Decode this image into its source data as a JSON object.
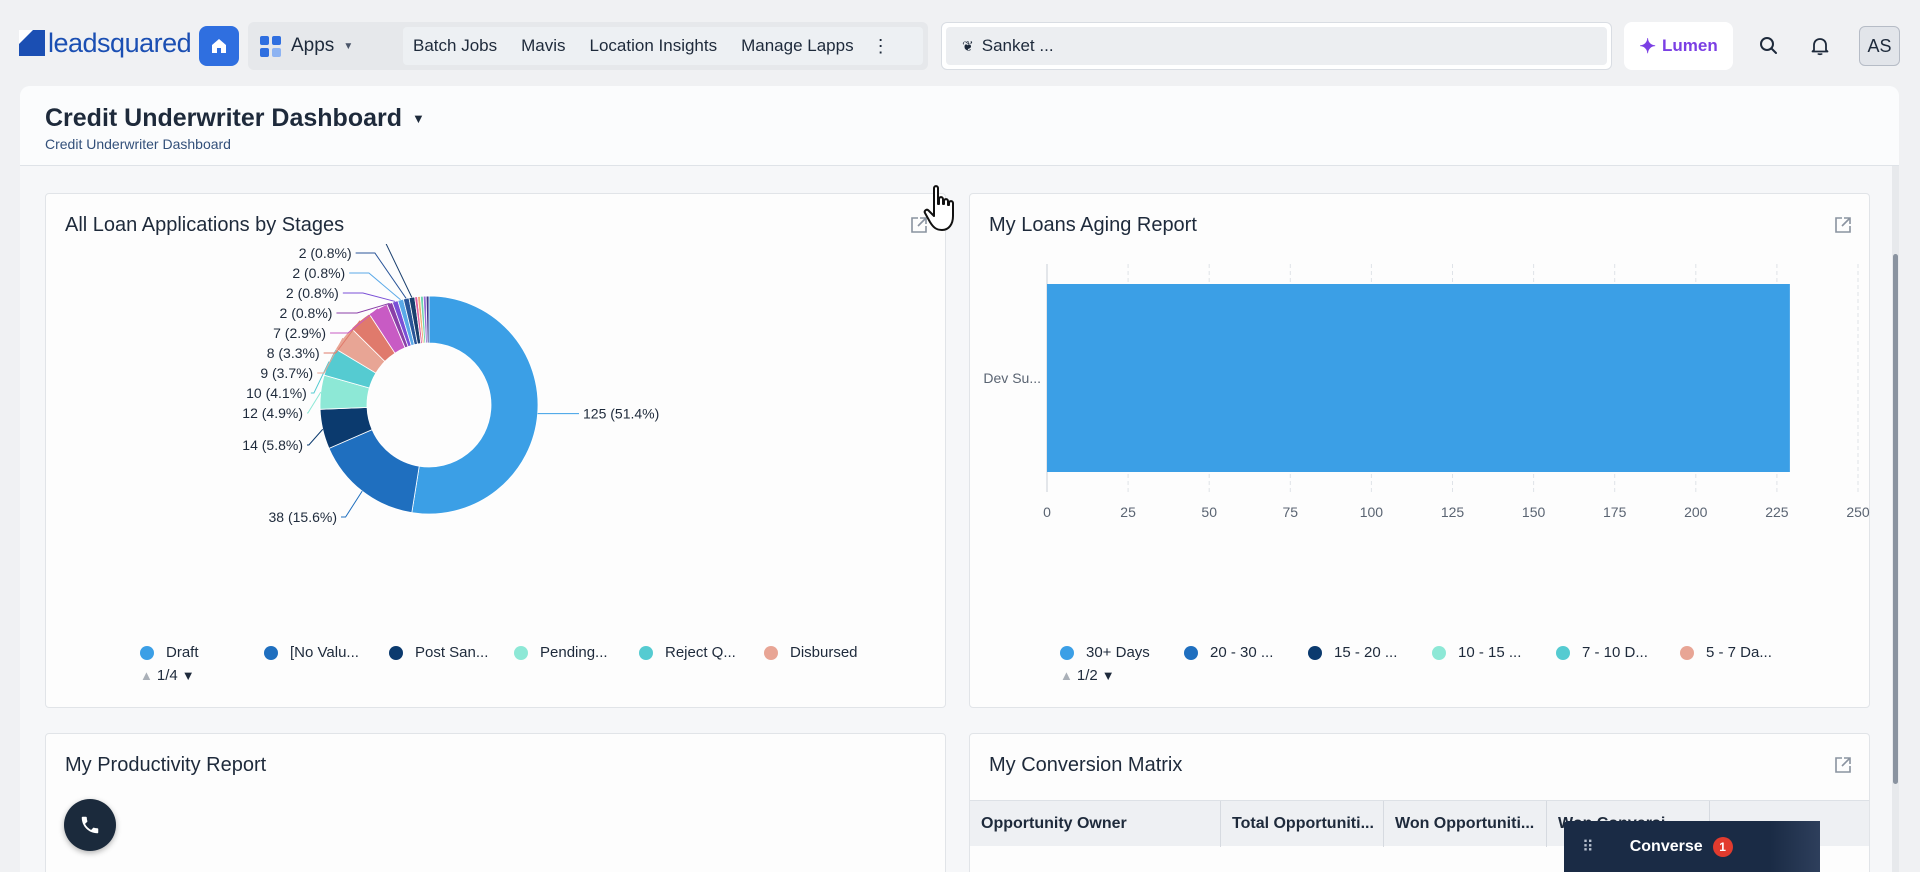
{
  "brand": {
    "logo_text": "leadsquared"
  },
  "topnav": {
    "apps_label": "Apps",
    "links": [
      "Batch Jobs",
      "Mavis",
      "Location Insights",
      "Manage Lapps"
    ],
    "search_value": "Sanket ...",
    "lumen_label": "Lumen",
    "avatar_initials": "AS"
  },
  "dashboard": {
    "title": "Credit Underwriter Dashboard",
    "subtitle": "Credit Underwriter Dashboard"
  },
  "widgets": {
    "loan_stages": {
      "title": "All Loan Applications by Stages",
      "legend": [
        {
          "label": "Draft",
          "color": "#3b9fe6"
        },
        {
          "label": "[No Valu...",
          "color": "#1f6fbf"
        },
        {
          "label": "Post San...",
          "color": "#0b3a6e"
        },
        {
          "label": "Pending...",
          "color": "#8de8d6"
        },
        {
          "label": "Reject Q...",
          "color": "#55cbd1"
        },
        {
          "label": "Disbursed",
          "color": "#e8a595"
        }
      ],
      "pager": "1/4"
    },
    "aging": {
      "title": "My Loans Aging Report",
      "legend": [
        {
          "label": "30+ Days",
          "color": "#3b9fe6"
        },
        {
          "label": "20 - 30 ...",
          "color": "#1f6fbf"
        },
        {
          "label": "15 - 20 ...",
          "color": "#0b3a6e"
        },
        {
          "label": "10 - 15 ...",
          "color": "#8de8d6"
        },
        {
          "label": "7 - 10 D...",
          "color": "#55cbd1"
        },
        {
          "label": "5 - 7 Da...",
          "color": "#e8a595"
        }
      ],
      "pager": "1/2"
    },
    "productivity": {
      "title": "My Productivity Report"
    },
    "conversion": {
      "title": "My Conversion Matrix",
      "columns": [
        "Opportunity Owner",
        "Total Opportuniti...",
        "Won Opportuniti...",
        "Won Conversi..."
      ]
    }
  },
  "converse": {
    "label": "Converse",
    "badge": "1"
  },
  "chart_data": [
    {
      "type": "pie",
      "title": "All Loan Applications by Stages",
      "donut": true,
      "slices": [
        {
          "label": "Draft",
          "value": 125,
          "display": "125 (51.4%)",
          "color": "#3b9fe6"
        },
        {
          "label": "[No Valu...",
          "value": 38,
          "display": "38 (15.6%)",
          "color": "#1f6fbf"
        },
        {
          "label": "Post San...",
          "value": 14,
          "display": "14 (5.8%)",
          "color": "#0b3a6e"
        },
        {
          "label": "Pending...",
          "value": 12,
          "display": "12 (4.9%)",
          "color": "#8de8d6"
        },
        {
          "label": "Reject Q...",
          "value": 10,
          "display": "10 (4.1%)",
          "color": "#55cbd1"
        },
        {
          "label": "Disbursed",
          "value": 9,
          "display": "9 (3.7%)",
          "color": "#e8a595"
        },
        {
          "label": "",
          "value": 8,
          "display": "8 (3.3%)",
          "color": "#e07a6c"
        },
        {
          "label": "",
          "value": 7,
          "display": "7 (2.9%)",
          "color": "#c85bc4"
        },
        {
          "label": "",
          "value": 2,
          "display": "2 (0.8%)",
          "color": "#8a3fa8"
        },
        {
          "label": "",
          "value": 2,
          "display": "2 (0.8%)",
          "color": "#7a4fd6"
        },
        {
          "label": "",
          "value": 2,
          "display": "2 (0.8%)",
          "color": "#5aa9e8"
        },
        {
          "label": "",
          "value": 2,
          "display": "2 (0.8%)",
          "color": "#2a5599"
        },
        {
          "label": "",
          "value": 2,
          "display": "2 (0.8%)",
          "color": "#1a3f6e"
        },
        {
          "label": "",
          "value": 1,
          "display": "",
          "color": "#e05fa0"
        },
        {
          "label": "",
          "value": 1,
          "display": "",
          "color": "#f0b07a"
        },
        {
          "label": "",
          "value": 1,
          "display": "",
          "color": "#6fd6b0"
        },
        {
          "label": "",
          "value": 1,
          "display": "",
          "color": "#9a6fd6"
        },
        {
          "label": "",
          "value": 1,
          "display": "",
          "color": "#3a3a8a"
        }
      ]
    },
    {
      "type": "bar",
      "orientation": "horizontal",
      "title": "My Loans Aging Report",
      "categories": [
        "Dev Su..."
      ],
      "series": [
        {
          "name": "30+ Days",
          "values": [
            229
          ]
        }
      ],
      "xlim": [
        0,
        250
      ],
      "xticks": [
        0,
        25,
        50,
        75,
        100,
        125,
        150,
        175,
        200,
        225,
        250
      ],
      "grid": true
    }
  ]
}
